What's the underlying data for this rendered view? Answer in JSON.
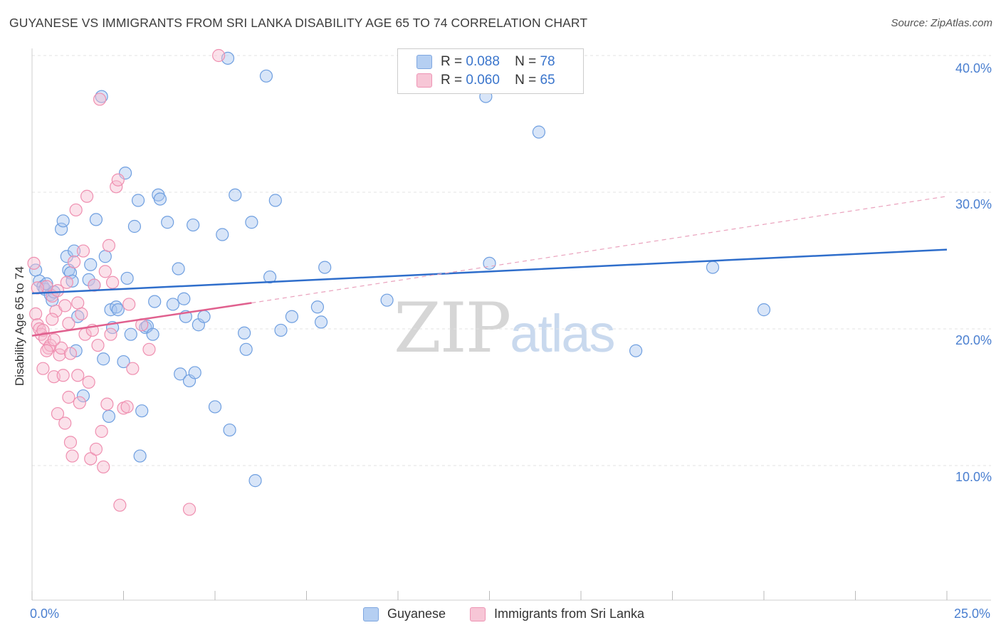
{
  "header": {
    "title": "GUYANESE VS IMMIGRANTS FROM SRI LANKA DISABILITY AGE 65 TO 74 CORRELATION CHART",
    "source": "Source: ZipAtlas.com"
  },
  "watermark": {
    "zip": "ZIP",
    "atlas": "atlas"
  },
  "legend": {
    "rows": [
      {
        "r_label": "R =",
        "r_value": "0.088",
        "n_label": "N =",
        "n_value": "78"
      },
      {
        "r_label": "R =",
        "r_value": "0.060",
        "n_label": "N =",
        "n_value": "65"
      }
    ]
  },
  "bottom_legend": {
    "series1": "Guyanese",
    "series2": "Immigrants from Sri Lanka"
  },
  "axis": {
    "ylabel": "Disability Age 65 to 74",
    "yticks": [
      "40.0%",
      "30.0%",
      "20.0%",
      "10.0%"
    ],
    "xtick_left": "0.0%",
    "xtick_right": "25.0%"
  },
  "chart_data": {
    "type": "scatter",
    "title": "GUYANESE VS IMMIGRANTS FROM SRI LANKA DISABILITY AGE 65 TO 74 CORRELATION CHART",
    "xlabel": "",
    "ylabel": "Disability Age 65 to 74",
    "xlim": [
      0,
      25
    ],
    "ylim": [
      0,
      41
    ],
    "yticks": [
      10,
      20,
      30,
      40
    ],
    "grid": true,
    "colors": {
      "Guyanese": "#6f9fe0",
      "Immigrants from Sri Lanka": "#ef8fb0",
      "trend_blue": "#2f6ecb",
      "trend_pink": "#e0608e"
    },
    "series": [
      {
        "name": "Guyanese",
        "r": 0.088,
        "n": 78,
        "trend": {
          "x": [
            0,
            25
          ],
          "y": [
            22.6,
            25.8
          ]
        },
        "points": [
          [
            0.1,
            24.3
          ],
          [
            0.2,
            23.5
          ],
          [
            0.3,
            23.1
          ],
          [
            0.35,
            22.9
          ],
          [
            0.4,
            23.3
          ],
          [
            0.5,
            22.5
          ],
          [
            0.55,
            22.1
          ],
          [
            0.6,
            22.7
          ],
          [
            0.8,
            27.3
          ],
          [
            0.85,
            27.9
          ],
          [
            0.95,
            25.3
          ],
          [
            1.0,
            24.3
          ],
          [
            1.05,
            24.1
          ],
          [
            1.1,
            23.5
          ],
          [
            1.15,
            25.7
          ],
          [
            1.2,
            18.4
          ],
          [
            1.25,
            20.9
          ],
          [
            1.4,
            15.1
          ],
          [
            1.55,
            23.6
          ],
          [
            1.6,
            24.7
          ],
          [
            1.7,
            23.2
          ],
          [
            1.75,
            28.0
          ],
          [
            1.9,
            37.0
          ],
          [
            1.95,
            17.8
          ],
          [
            2.0,
            25.3
          ],
          [
            2.1,
            13.6
          ],
          [
            2.15,
            21.4
          ],
          [
            2.2,
            20.1
          ],
          [
            2.3,
            21.6
          ],
          [
            2.35,
            21.4
          ],
          [
            2.5,
            17.6
          ],
          [
            2.55,
            31.4
          ],
          [
            2.6,
            23.7
          ],
          [
            2.7,
            19.6
          ],
          [
            2.8,
            27.5
          ],
          [
            2.9,
            29.4
          ],
          [
            2.95,
            10.7
          ],
          [
            3.0,
            14.0
          ],
          [
            3.1,
            20.1
          ],
          [
            3.15,
            20.2
          ],
          [
            3.3,
            19.6
          ],
          [
            3.35,
            22.0
          ],
          [
            3.45,
            29.8
          ],
          [
            3.5,
            29.5
          ],
          [
            3.7,
            27.8
          ],
          [
            3.85,
            21.8
          ],
          [
            4.0,
            24.4
          ],
          [
            4.05,
            16.7
          ],
          [
            4.15,
            22.2
          ],
          [
            4.2,
            20.9
          ],
          [
            4.3,
            16.2
          ],
          [
            4.4,
            27.6
          ],
          [
            4.45,
            16.8
          ],
          [
            4.55,
            20.3
          ],
          [
            4.7,
            20.9
          ],
          [
            5.0,
            14.3
          ],
          [
            5.2,
            26.9
          ],
          [
            5.35,
            39.8
          ],
          [
            5.4,
            12.6
          ],
          [
            5.55,
            29.8
          ],
          [
            5.8,
            19.7
          ],
          [
            5.85,
            18.5
          ],
          [
            6.0,
            27.8
          ],
          [
            6.1,
            8.9
          ],
          [
            6.4,
            38.5
          ],
          [
            6.5,
            23.8
          ],
          [
            6.65,
            29.4
          ],
          [
            6.8,
            19.9
          ],
          [
            7.1,
            20.9
          ],
          [
            7.8,
            21.6
          ],
          [
            7.9,
            20.5
          ],
          [
            8.0,
            24.5
          ],
          [
            9.7,
            22.1
          ],
          [
            12.4,
            37.0
          ],
          [
            12.5,
            24.8
          ],
          [
            13.85,
            34.4
          ],
          [
            16.5,
            18.4
          ],
          [
            18.6,
            24.5
          ],
          [
            20.0,
            21.4
          ]
        ]
      },
      {
        "name": "Immigrants from Sri Lanka",
        "r": 0.06,
        "n": 65,
        "trend": {
          "x": [
            0,
            6.0
          ],
          "y": [
            19.5,
            21.9
          ]
        },
        "trend_dashed": {
          "x": [
            6.0,
            25
          ],
          "y": [
            21.9,
            29.7
          ]
        },
        "points": [
          [
            0.05,
            24.8
          ],
          [
            0.1,
            21.1
          ],
          [
            0.15,
            20.3
          ],
          [
            0.2,
            20.0
          ],
          [
            0.25,
            19.6
          ],
          [
            0.3,
            19.9
          ],
          [
            0.35,
            19.3
          ],
          [
            0.4,
            23.1
          ],
          [
            0.45,
            18.6
          ],
          [
            0.5,
            18.8
          ],
          [
            0.55,
            22.4
          ],
          [
            0.6,
            16.5
          ],
          [
            0.65,
            21.3
          ],
          [
            0.7,
            13.8
          ],
          [
            0.75,
            18.1
          ],
          [
            0.8,
            18.6
          ],
          [
            0.85,
            16.6
          ],
          [
            0.9,
            13.1
          ],
          [
            0.95,
            23.4
          ],
          [
            1.0,
            15.0
          ],
          [
            1.05,
            11.7
          ],
          [
            1.1,
            10.7
          ],
          [
            1.15,
            24.9
          ],
          [
            1.2,
            28.7
          ],
          [
            1.25,
            16.6
          ],
          [
            1.3,
            14.6
          ],
          [
            1.35,
            21.1
          ],
          [
            1.4,
            25.7
          ],
          [
            1.45,
            19.6
          ],
          [
            1.5,
            29.7
          ],
          [
            1.55,
            16.1
          ],
          [
            1.6,
            10.5
          ],
          [
            1.65,
            19.9
          ],
          [
            1.7,
            23.2
          ],
          [
            1.75,
            11.2
          ],
          [
            1.8,
            18.8
          ],
          [
            1.85,
            36.8
          ],
          [
            1.9,
            12.5
          ],
          [
            1.95,
            9.9
          ],
          [
            2.0,
            24.2
          ],
          [
            2.05,
            14.5
          ],
          [
            2.1,
            26.1
          ],
          [
            2.15,
            19.6
          ],
          [
            2.2,
            23.4
          ],
          [
            2.3,
            30.4
          ],
          [
            2.35,
            30.9
          ],
          [
            2.4,
            7.1
          ],
          [
            2.5,
            14.2
          ],
          [
            2.6,
            14.3
          ],
          [
            2.65,
            21.8
          ],
          [
            2.75,
            17.1
          ],
          [
            3.0,
            20.3
          ],
          [
            3.2,
            18.5
          ],
          [
            4.3,
            6.8
          ],
          [
            5.1,
            40.0
          ],
          [
            0.3,
            17.1
          ],
          [
            0.9,
            21.7
          ],
          [
            0.55,
            20.7
          ],
          [
            0.4,
            18.4
          ],
          [
            1.0,
            20.4
          ],
          [
            0.7,
            22.8
          ],
          [
            1.25,
            21.9
          ],
          [
            0.15,
            23.0
          ],
          [
            0.6,
            19.2
          ],
          [
            1.05,
            18.2
          ]
        ]
      }
    ]
  }
}
